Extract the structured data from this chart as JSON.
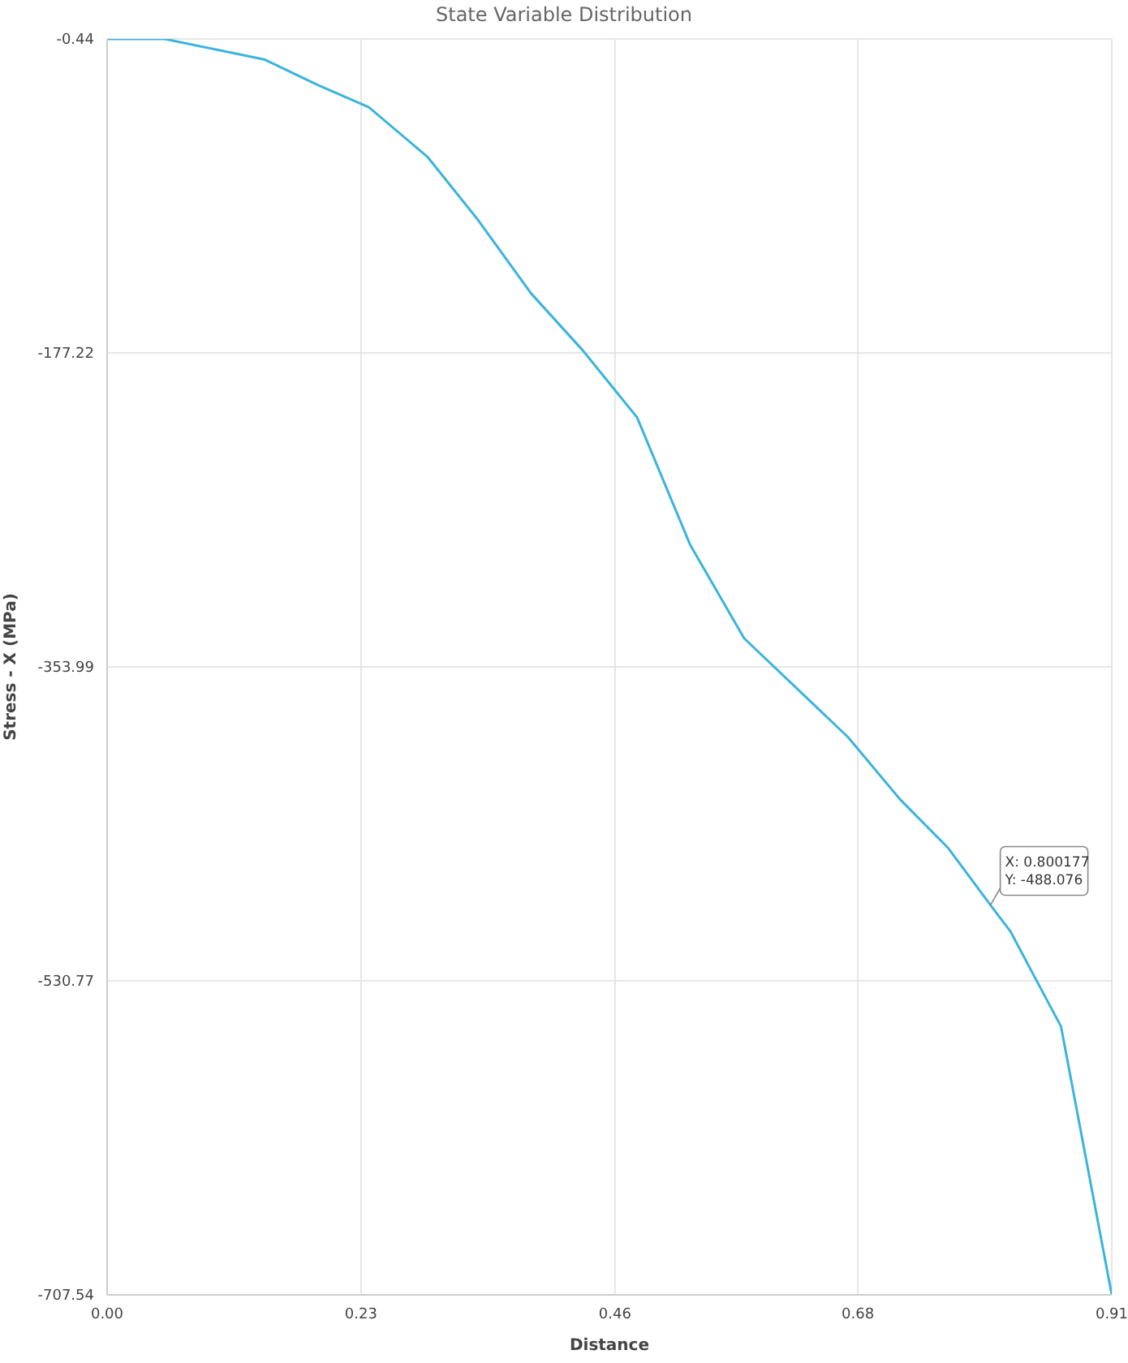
{
  "chart_data": {
    "type": "line",
    "title": "State Variable Distribution",
    "xlabel": "Distance",
    "ylabel": "Stress - X (MPa)",
    "x": [
      0,
      0.052,
      0.143,
      0.191,
      0.237,
      0.29,
      0.335,
      0.384,
      0.431,
      0.48,
      0.528,
      0.577,
      0.671,
      0.718,
      0.762,
      0.800177,
      0.818,
      0.864,
      0.91
    ],
    "series": [
      {
        "color": "#3ab4dc",
        "values": [
          -0.44,
          -0.44,
          -12.1,
          -26.4,
          -38.9,
          -66.7,
          -101.6,
          -143.7,
          -175.9,
          -213.5,
          -285.1,
          -337.9,
          -393.5,
          -428.4,
          -456.1,
          -488.076,
          -502.7,
          -556.4,
          -707.54
        ]
      }
    ],
    "xlim": [
      0,
      0.91
    ],
    "xticks": [
      {
        "value": 0,
        "label": "0.00"
      },
      0.23,
      0.46,
      0.68,
      0.91
    ],
    "ylim": [
      -707.54,
      -0.44
    ],
    "yticks": [
      -0.44,
      -177.22,
      -353.99,
      -530.77,
      -707.54
    ],
    "grid": true,
    "marker": "none",
    "line_style": "solid",
    "legend": false,
    "annotations": [
      {
        "text": "X: 0.800177\nY: -488.076",
        "x": 0.800177,
        "y": -488.076
      }
    ]
  }
}
